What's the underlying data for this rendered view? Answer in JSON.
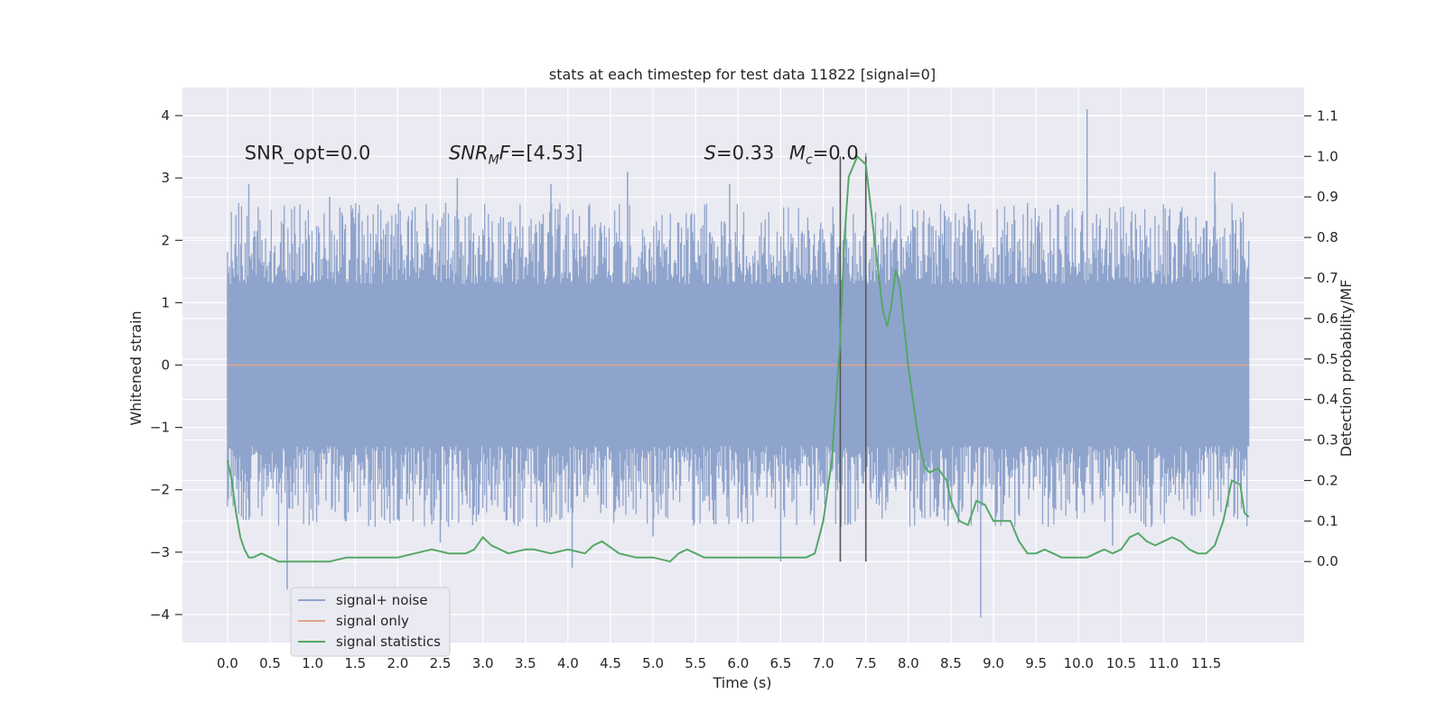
{
  "chart_data": {
    "type": "line",
    "title": "stats at each timestep for test data 11822 [signal=0]",
    "xlabel": "Time (s)",
    "ylabel": "Whitened strain",
    "y2label": "Detection probability/MF",
    "xlim": [
      -0.53,
      12.65
    ],
    "ylim": [
      -4.45,
      4.45
    ],
    "y2lim": [
      -0.2,
      1.17
    ],
    "x_ticks": [
      0.0,
      0.5,
      1.0,
      1.5,
      2.0,
      2.5,
      3.0,
      3.5,
      4.0,
      4.5,
      5.0,
      5.5,
      6.0,
      6.5,
      7.0,
      7.5,
      8.0,
      8.5,
      9.0,
      9.5,
      10.0,
      10.5,
      11.0,
      11.5
    ],
    "x_tick_labels": [
      "0.0",
      "0.5",
      "1.0",
      "1.5",
      "2.0",
      "2.5",
      "3.0",
      "3.5",
      "4.0",
      "4.5",
      "5.0",
      "5.5",
      "6.0",
      "6.5",
      "7.0",
      "7.5",
      "8.0",
      "8.5",
      "9.0",
      "9.5",
      "10.0",
      "10.5",
      "11.0",
      "11.5"
    ],
    "y_ticks": [
      -4,
      -3,
      -2,
      -1,
      0,
      1,
      2,
      3,
      4
    ],
    "y_tick_labels": [
      "−4",
      "−3",
      "−2",
      "−1",
      "0",
      "1",
      "2",
      "3",
      "4"
    ],
    "y2_ticks": [
      0.0,
      0.1,
      0.2,
      0.3,
      0.4,
      0.5,
      0.6,
      0.7,
      0.8,
      0.9,
      1.0,
      1.1
    ],
    "y2_tick_labels": [
      "0.0",
      "0.1",
      "0.2",
      "0.3",
      "0.4",
      "0.5",
      "0.6",
      "0.7",
      "0.8",
      "0.9",
      "1.0",
      "1.1"
    ],
    "grid": true,
    "legend_position": "lower-left",
    "series": [
      {
        "name": "signal+ noise",
        "axis": "left",
        "color": "#8fa4cc",
        "band_x_range": [
          0.0,
          12.0
        ],
        "envelope_upper": 1.3,
        "envelope_lower": -1.3,
        "peaks_upper": [
          [
            0.25,
            2.9
          ],
          [
            1.2,
            2.7
          ],
          [
            2.7,
            3.0
          ],
          [
            3.8,
            2.9
          ],
          [
            4.7,
            3.1
          ],
          [
            5.9,
            2.9
          ],
          [
            7.5,
            3.4
          ],
          [
            9.4,
            2.6
          ],
          [
            10.1,
            4.1
          ],
          [
            11.6,
            3.1
          ]
        ],
        "peaks_lower": [
          [
            0.7,
            -3.6
          ],
          [
            2.5,
            -2.85
          ],
          [
            4.05,
            -3.25
          ],
          [
            5.0,
            -2.75
          ],
          [
            6.5,
            -3.15
          ],
          [
            8.85,
            -4.05
          ],
          [
            10.4,
            -2.9
          ]
        ]
      },
      {
        "name": "signal only",
        "axis": "left",
        "color": "#e1a687",
        "x": [
          0.0,
          12.0
        ],
        "y": [
          0.0,
          0.0
        ]
      },
      {
        "name": "signal statistics",
        "axis": "right",
        "color": "#55a868",
        "x": [
          0.0,
          0.05,
          0.1,
          0.15,
          0.2,
          0.25,
          0.3,
          0.4,
          0.5,
          0.6,
          0.8,
          1.0,
          1.2,
          1.4,
          1.6,
          1.8,
          2.0,
          2.2,
          2.4,
          2.6,
          2.8,
          2.9,
          3.0,
          3.1,
          3.3,
          3.5,
          3.6,
          3.8,
          4.0,
          4.2,
          4.3,
          4.4,
          4.6,
          4.8,
          5.0,
          5.2,
          5.3,
          5.4,
          5.6,
          5.8,
          6.0,
          6.2,
          6.4,
          6.6,
          6.8,
          6.9,
          7.0,
          7.1,
          7.2,
          7.25,
          7.3,
          7.4,
          7.5,
          7.6,
          7.7,
          7.75,
          7.8,
          7.85,
          7.9,
          8.0,
          8.1,
          8.15,
          8.2,
          8.25,
          8.35,
          8.45,
          8.5,
          8.6,
          8.7,
          8.8,
          8.9,
          9.0,
          9.1,
          9.2,
          9.3,
          9.4,
          9.5,
          9.6,
          9.7,
          9.8,
          10.0,
          10.1,
          10.2,
          10.3,
          10.4,
          10.5,
          10.6,
          10.7,
          10.8,
          10.9,
          11.0,
          11.1,
          11.2,
          11.3,
          11.4,
          11.5,
          11.6,
          11.7,
          11.8,
          11.9,
          11.95,
          12.0
        ],
        "y": [
          0.25,
          0.2,
          0.12,
          0.06,
          0.03,
          0.01,
          0.01,
          0.02,
          0.01,
          0.0,
          0.0,
          0.0,
          0.0,
          0.01,
          0.01,
          0.01,
          0.01,
          0.02,
          0.03,
          0.02,
          0.02,
          0.03,
          0.06,
          0.04,
          0.02,
          0.03,
          0.03,
          0.02,
          0.03,
          0.02,
          0.04,
          0.05,
          0.02,
          0.01,
          0.01,
          0.0,
          0.02,
          0.03,
          0.01,
          0.01,
          0.01,
          0.01,
          0.01,
          0.01,
          0.01,
          0.02,
          0.1,
          0.25,
          0.55,
          0.8,
          0.95,
          1.0,
          0.98,
          0.8,
          0.62,
          0.58,
          0.63,
          0.72,
          0.68,
          0.48,
          0.33,
          0.27,
          0.23,
          0.22,
          0.23,
          0.2,
          0.15,
          0.1,
          0.09,
          0.15,
          0.14,
          0.1,
          0.1,
          0.1,
          0.05,
          0.02,
          0.02,
          0.03,
          0.02,
          0.01,
          0.01,
          0.01,
          0.02,
          0.03,
          0.02,
          0.03,
          0.06,
          0.07,
          0.05,
          0.04,
          0.05,
          0.06,
          0.05,
          0.03,
          0.02,
          0.02,
          0.04,
          0.1,
          0.2,
          0.19,
          0.12,
          0.11
        ]
      }
    ],
    "vertical_lines": [
      7.2,
      7.5
    ],
    "vertical_line_color": "#555555",
    "vertical_line_range_right": [
      0.0,
      1.0
    ],
    "annotations": [
      {
        "name": "annot-snr-opt",
        "x": 0.2,
        "y": 3.3,
        "text": "SNR_opt=0.0",
        "style": "plain"
      },
      {
        "name": "annot-snr-mf",
        "x": 2.6,
        "y": 3.3,
        "text": "SNR_MF=[4.53]",
        "style": "math-mf"
      },
      {
        "name": "annot-s",
        "x": 5.6,
        "y": 3.3,
        "text": "S=0.33",
        "style": "math-s"
      },
      {
        "name": "annot-mc",
        "x": 6.6,
        "y": 3.3,
        "text": "M_c=0.0",
        "style": "math-mc"
      }
    ],
    "legend": [
      "signal+ noise",
      "signal only",
      "signal statistics"
    ]
  }
}
